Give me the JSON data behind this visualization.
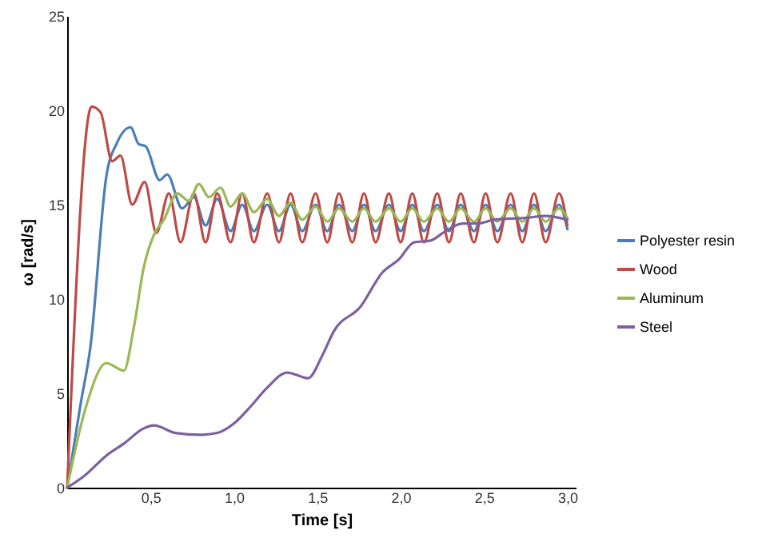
{
  "chart_data": {
    "type": "line",
    "xlabel": "Time [s]",
    "ylabel": "ω [rad/s]",
    "xlim": [
      0,
      3.05
    ],
    "ylim": [
      0,
      25
    ],
    "xticks": [
      {
        "value": 0.5,
        "label": "0,5"
      },
      {
        "value": 1,
        "label": "1,0"
      },
      {
        "value": 1.5,
        "label": "1,5"
      },
      {
        "value": 2,
        "label": "2,0"
      },
      {
        "value": 2.5,
        "label": "2,5"
      },
      {
        "value": 3,
        "label": "3,0"
      }
    ],
    "yticks": [
      0,
      5,
      10,
      15,
      20,
      25
    ],
    "grid": false,
    "legend": "right",
    "line_style": "solid",
    "series": [
      {
        "name": "Polyester resin",
        "color": "#4a7ebb",
        "x": [
          0,
          0.08,
          0.14,
          0.235,
          0.3,
          0.38,
          0.43,
          0.47,
          0.555,
          0.6,
          0.69,
          0.76,
          0.83,
          0.9,
          0.98,
          1.05,
          1.12,
          1.2,
          1.27,
          1.34,
          1.41,
          1.49,
          1.56,
          1.63,
          1.71,
          1.78,
          1.85,
          1.93,
          2.0,
          2.07,
          2.14,
          2.22,
          2.29,
          2.36,
          2.44,
          2.51,
          2.58,
          2.66,
          2.73,
          2.8,
          2.87,
          2.95,
          3.0
        ],
        "values": [
          0,
          4.4,
          7.5,
          16.5,
          18.3,
          19.1,
          18.2,
          18.1,
          16.3,
          16.6,
          14.8,
          15.4,
          13.9,
          15.3,
          13.6,
          15.0,
          13.6,
          15.0,
          13.6,
          15.0,
          13.6,
          15.0,
          13.6,
          15.0,
          13.6,
          15.0,
          13.6,
          15.0,
          13.6,
          15.0,
          13.6,
          15.0,
          13.6,
          15.0,
          13.6,
          15.0,
          13.6,
          15.0,
          13.6,
          15.0,
          13.6,
          15.0,
          13.7
        ]
      },
      {
        "name": "Wood",
        "color": "#be4b48",
        "x": [
          0,
          0.147,
          0.2,
          0.27,
          0.32,
          0.39,
          0.465,
          0.535,
          0.61,
          0.68,
          0.76,
          0.83,
          0.9,
          0.98,
          1.05,
          1.12,
          1.2,
          1.27,
          1.34,
          1.41,
          1.49,
          1.56,
          1.63,
          1.71,
          1.78,
          1.85,
          1.93,
          2.0,
          2.07,
          2.14,
          2.22,
          2.29,
          2.36,
          2.44,
          2.51,
          2.58,
          2.66,
          2.73,
          2.8,
          2.87,
          2.95,
          3.0
        ],
        "values": [
          0,
          20.2,
          19.9,
          17.3,
          17.6,
          15.0,
          16.2,
          13.5,
          15.6,
          13.0,
          15.6,
          13.0,
          15.6,
          13.0,
          15.6,
          13.0,
          15.6,
          13.0,
          15.6,
          13.0,
          15.6,
          13.0,
          15.6,
          13.0,
          15.6,
          13.0,
          15.6,
          13.0,
          15.6,
          13.0,
          15.6,
          13.0,
          15.6,
          13.0,
          15.6,
          13.0,
          15.6,
          13.0,
          15.6,
          13.0,
          15.6,
          13.9
        ]
      },
      {
        "name": "Aluminum",
        "color": "#98b954",
        "x": [
          0,
          0.11,
          0.235,
          0.34,
          0.4,
          0.46,
          0.52,
          0.58,
          0.66,
          0.73,
          0.79,
          0.85,
          0.92,
          0.98,
          1.05,
          1.12,
          1.2,
          1.27,
          1.34,
          1.41,
          1.49,
          1.56,
          1.63,
          1.71,
          1.78,
          1.85,
          1.93,
          2.0,
          2.07,
          2.14,
          2.22,
          2.29,
          2.36,
          2.44,
          2.51,
          2.58,
          2.66,
          2.73,
          2.8,
          2.87,
          2.95,
          3.0
        ],
        "values": [
          0,
          4.2,
          6.6,
          6.2,
          8.5,
          11.7,
          13.4,
          14.2,
          15.6,
          15.2,
          16.1,
          15.4,
          15.9,
          14.9,
          15.6,
          14.6,
          15.3,
          14.4,
          15.1,
          14.2,
          14.9,
          14.1,
          14.8,
          14.1,
          14.8,
          14.1,
          14.8,
          14.1,
          14.8,
          14.1,
          14.8,
          14.1,
          14.8,
          14.1,
          14.8,
          14.1,
          14.8,
          14.1,
          14.8,
          14.1,
          14.8,
          14.3
        ]
      },
      {
        "name": "Steel",
        "color": "#7d60a0",
        "x": [
          0,
          0.1,
          0.235,
          0.35,
          0.45,
          0.52,
          0.65,
          0.8,
          0.9,
          1.0,
          1.1,
          1.2,
          1.32,
          1.445,
          1.53,
          1.6,
          1.76,
          1.89,
          1.99,
          2.08,
          2.18,
          2.27,
          2.37,
          2.46,
          2.56,
          2.75,
          2.87,
          3.0
        ],
        "values": [
          0,
          0.6,
          1.7,
          2.4,
          3.1,
          3.3,
          2.9,
          2.8,
          2.9,
          3.4,
          4.3,
          5.3,
          6.1,
          5.8,
          7.0,
          8.3,
          9.6,
          11.4,
          12.1,
          13.0,
          13.1,
          13.6,
          14.0,
          14.0,
          14.2,
          14.3,
          14.4,
          14.2
        ]
      }
    ]
  }
}
